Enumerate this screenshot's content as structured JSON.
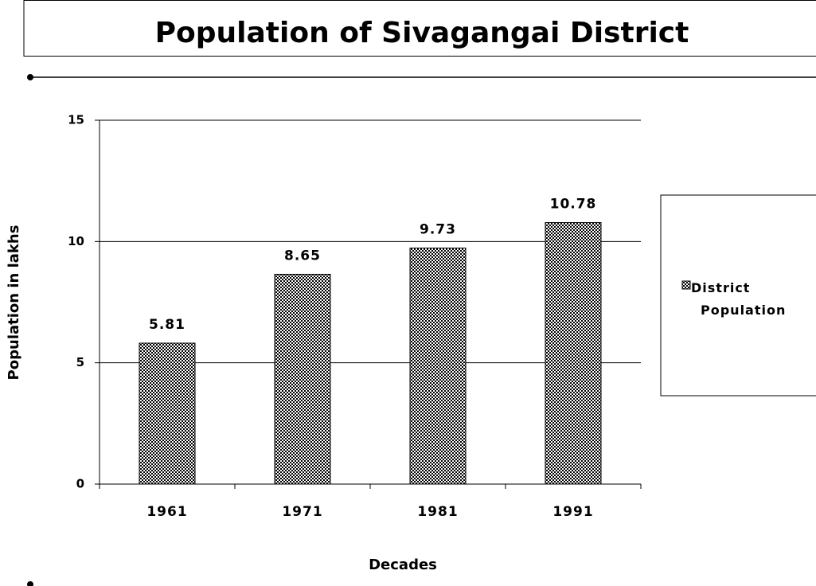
{
  "chart_data": {
    "type": "bar",
    "title": "Population of Sivagangai District",
    "categories": [
      "1961",
      "1971",
      "1981",
      "1991"
    ],
    "series": [
      {
        "name": "District Population",
        "color": "#000000",
        "values": [
          5.81,
          8.65,
          9.73,
          10.78
        ]
      }
    ],
    "x_label": "Decades",
    "y_label": "Population in lakhs",
    "ylim": [
      0,
      15
    ],
    "yticks": [
      0,
      5,
      10,
      15
    ],
    "grid": true,
    "legend": "right"
  }
}
